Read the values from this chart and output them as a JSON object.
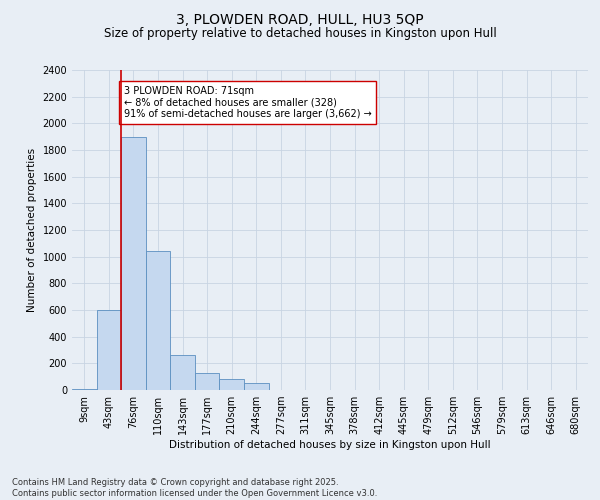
{
  "title": "3, PLOWDEN ROAD, HULL, HU3 5QP",
  "subtitle": "Size of property relative to detached houses in Kingston upon Hull",
  "xlabel": "Distribution of detached houses by size in Kingston upon Hull",
  "ylabel": "Number of detached properties",
  "categories": [
    "9sqm",
    "43sqm",
    "76sqm",
    "110sqm",
    "143sqm",
    "177sqm",
    "210sqm",
    "244sqm",
    "277sqm",
    "311sqm",
    "345sqm",
    "378sqm",
    "412sqm",
    "445sqm",
    "479sqm",
    "512sqm",
    "546sqm",
    "579sqm",
    "613sqm",
    "646sqm",
    "680sqm"
  ],
  "values": [
    5,
    600,
    1900,
    1040,
    260,
    130,
    80,
    55,
    0,
    0,
    0,
    0,
    0,
    0,
    0,
    0,
    0,
    0,
    0,
    0,
    0
  ],
  "bar_color": "#c5d8ef",
  "bar_edge_color": "#5b8fc0",
  "vline_color": "#cc0000",
  "annotation_text": "3 PLOWDEN ROAD: 71sqm\n← 8% of detached houses are smaller (328)\n91% of semi-detached houses are larger (3,662) →",
  "annotation_box_color": "#ffffff",
  "annotation_box_edge": "#cc0000",
  "ylim": [
    0,
    2400
  ],
  "yticks": [
    0,
    200,
    400,
    600,
    800,
    1000,
    1200,
    1400,
    1600,
    1800,
    2000,
    2200,
    2400
  ],
  "bg_color": "#e8eef5",
  "grid_color": "#c8d4e3",
  "footer": "Contains HM Land Registry data © Crown copyright and database right 2025.\nContains public sector information licensed under the Open Government Licence v3.0.",
  "title_fontsize": 10,
  "subtitle_fontsize": 8.5,
  "axis_label_fontsize": 7.5,
  "tick_fontsize": 7,
  "annotation_fontsize": 7,
  "footer_fontsize": 6
}
